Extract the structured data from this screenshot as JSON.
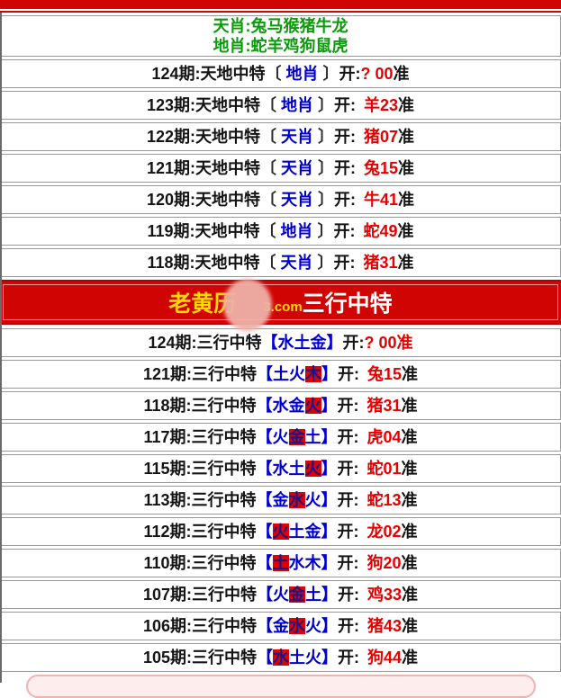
{
  "colors": {
    "red": "#e60000",
    "blue": "#0000cc",
    "green": "#0a9b0a",
    "banner": "#d10404",
    "yellow": "#ffd800",
    "hl_bg": "#e00000",
    "hl_char": "#16168c"
  },
  "zodiac_header": {
    "tian_line": "天肖:兔马猴猪牛龙",
    "di_line": "地肖:蛇羊鸡狗鼠虎"
  },
  "banner": {
    "site_prefix": "老黄历",
    "site_suffix": "3.com",
    "title": "三行中特"
  },
  "labels": {
    "period_suffix": "期",
    "colon": ":",
    "game1": "天地中特",
    "game2": "三行中特",
    "open": "开:",
    "sure": "准",
    "bracket1_open": "〔",
    "bracket1_close": "〕",
    "bracket2_open": "【",
    "bracket2_close": "】"
  },
  "tiandi_rows": [
    {
      "period": "124",
      "pick": "地肖",
      "open": "? 00",
      "pending": true
    },
    {
      "period": "123",
      "pick": "地肖",
      "open": "羊23",
      "pending": false
    },
    {
      "period": "122",
      "pick": "天肖",
      "open": "猪07",
      "pending": false
    },
    {
      "period": "121",
      "pick": "天肖",
      "open": "兔15",
      "pending": false
    },
    {
      "period": "120",
      "pick": "天肖",
      "open": "牛41",
      "pending": false
    },
    {
      "period": "119",
      "pick": "地肖",
      "open": "蛇49",
      "pending": false
    },
    {
      "period": "118",
      "pick": "天肖",
      "open": "猪31",
      "pending": false
    }
  ],
  "sanxing_rows": [
    {
      "period": "124",
      "elements": [
        "水",
        "土",
        "金"
      ],
      "hit_index": -1,
      "open": "? 00",
      "pending": true
    },
    {
      "period": "121",
      "elements": [
        "土",
        "火",
        "木"
      ],
      "hit_index": 2,
      "open": "兔15",
      "pending": false
    },
    {
      "period": "118",
      "elements": [
        "水",
        "金",
        "火"
      ],
      "hit_index": 2,
      "open": "猪31",
      "pending": false
    },
    {
      "period": "117",
      "elements": [
        "火",
        "金",
        "土"
      ],
      "hit_index": 1,
      "open": "虎04",
      "pending": false
    },
    {
      "period": "115",
      "elements": [
        "水",
        "土",
        "火"
      ],
      "hit_index": 2,
      "open": "蛇01",
      "pending": false
    },
    {
      "period": "113",
      "elements": [
        "金",
        "水",
        "火"
      ],
      "hit_index": 1,
      "open": "蛇13",
      "pending": false
    },
    {
      "period": "112",
      "elements": [
        "火",
        "土",
        "金"
      ],
      "hit_index": 0,
      "open": "龙02",
      "pending": false
    },
    {
      "period": "110",
      "elements": [
        "土",
        "水",
        "木"
      ],
      "hit_index": 0,
      "open": "狗20",
      "pending": false
    },
    {
      "period": "107",
      "elements": [
        "火",
        "金",
        "土"
      ],
      "hit_index": 1,
      "open": "鸡33",
      "pending": false
    },
    {
      "period": "106",
      "elements": [
        "金",
        "水",
        "火"
      ],
      "hit_index": 1,
      "open": "猪43",
      "pending": false
    },
    {
      "period": "105",
      "elements": [
        "水",
        "土",
        "火"
      ],
      "hit_index": 0,
      "open": "狗44",
      "pending": false
    }
  ]
}
